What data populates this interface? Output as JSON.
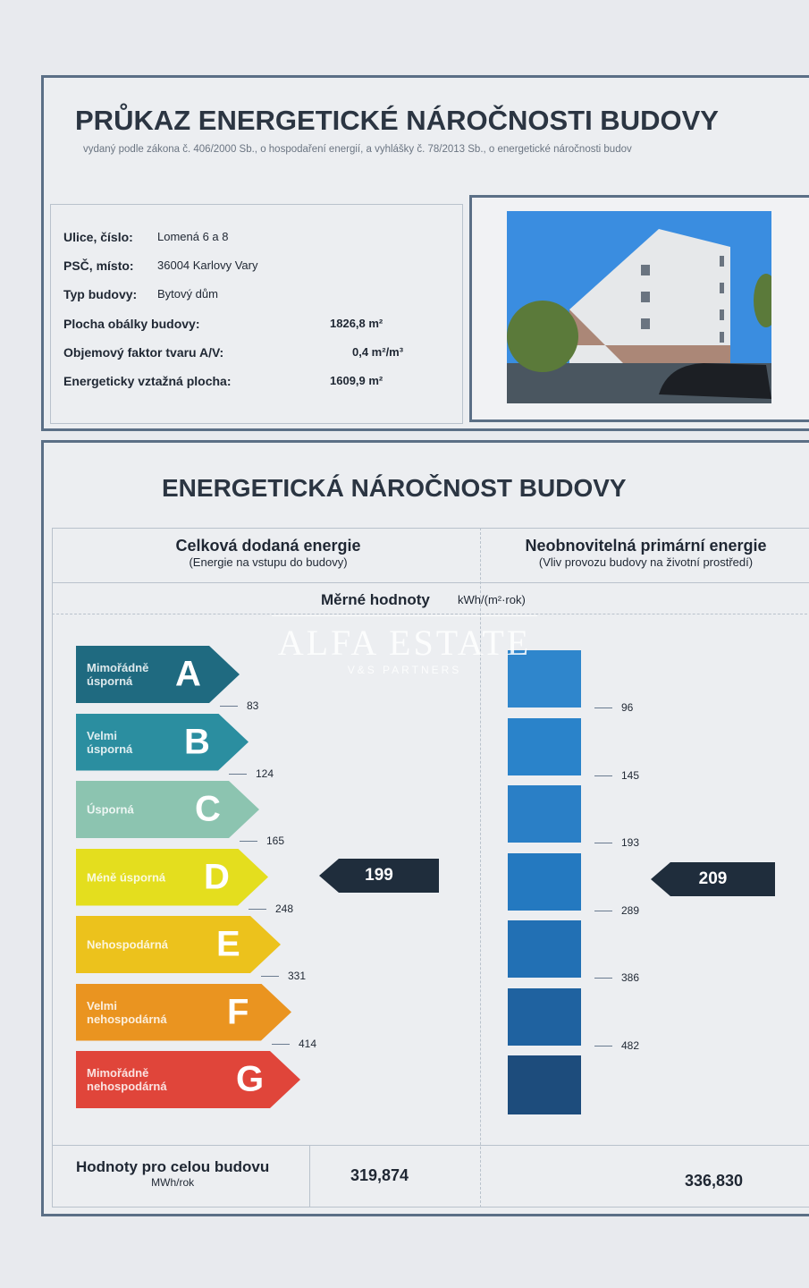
{
  "header": {
    "title": "PRŮKAZ ENERGETICKÉ NÁROČNOSTI BUDOVY",
    "subtitle": "vydaný podle zákona č. 406/2000 Sb., o hospodaření energií, a vyhlášky č. 78/2013 Sb., o energetické náročnosti budov"
  },
  "info": [
    {
      "label": "Ulice, číslo:",
      "value": "Lomená 6 a 8"
    },
    {
      "label": "PSČ, místo:",
      "value": "36004  Karlovy Vary"
    },
    {
      "label": "Typ budovy:",
      "value": "Bytový dům"
    },
    {
      "label": "Plocha obálky budovy:",
      "value": "1826,8 m²"
    },
    {
      "label": "Objemový faktor tvaru A/V:",
      "value": "0,4 m²/m³"
    },
    {
      "label": "Energeticky vztažná plocha:",
      "value": "1609,9 m²"
    }
  ],
  "section": {
    "title": "ENERGETICKÁ NÁROČNOST BUDOVY",
    "left_head": "Celková dodaná energie",
    "left_sub": "(Energie na vstupu do budovy)",
    "right_head": "Neobnovitelná primární energie",
    "right_sub": "(Vliv provozu budovy na životní prostředí)",
    "specific_label": "Měrné hodnoty",
    "unit": "kWh/(m²·rok)"
  },
  "classes": [
    {
      "letter": "A",
      "label": "Mimořádně\núsporná",
      "color": "#1f6a80"
    },
    {
      "letter": "B",
      "label": "Velmi\núsporná",
      "color": "#2b8ea0"
    },
    {
      "letter": "C",
      "label": "Úsporná",
      "color": "#8cc4b0"
    },
    {
      "letter": "D",
      "label": "Méně úsporná",
      "color": "#e4de1e"
    },
    {
      "letter": "E",
      "label": "Nehospodárná",
      "color": "#ecc21c"
    },
    {
      "letter": "F",
      "label": "Velmi\nnehospodárná",
      "color": "#ea9420"
    },
    {
      "letter": "G",
      "label": "Mimořádně\nnehospodárná",
      "color": "#e0453a"
    }
  ],
  "left_thresholds": [
    "83",
    "124",
    "165",
    "248",
    "331",
    "414"
  ],
  "right_thresholds": [
    "96",
    "145",
    "193",
    "289",
    "386",
    "482"
  ],
  "left_value": "199",
  "right_value": "209",
  "right_colors": [
    "#2f86cc",
    "#2a83ca",
    "#2a7fc6",
    "#2479c0",
    "#2270b4",
    "#1f62a0",
    "#1d4c7c"
  ],
  "totals": {
    "label": "Hodnoty pro celou budovu",
    "unit": "MWh/rok",
    "left": "319,874",
    "right": "336,830"
  },
  "watermark": {
    "name": "ALFA ESTATE",
    "sub": "V&S PARTNERS"
  }
}
